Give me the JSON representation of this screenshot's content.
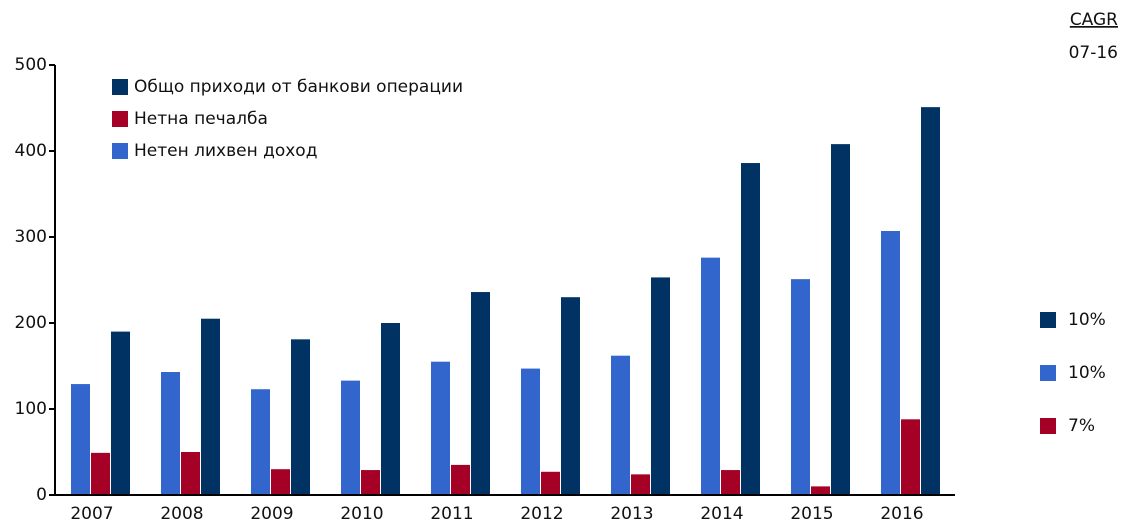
{
  "chart_data": {
    "type": "bar",
    "categories": [
      "2007",
      "2008",
      "2009",
      "2010",
      "2011",
      "2012",
      "2013",
      "2014",
      "2015",
      "2016"
    ],
    "series": [
      {
        "name": "Нетен лихвен доход",
        "color": "#3366cc",
        "values": [
          129,
          143,
          123,
          133,
          155,
          147,
          162,
          276,
          251,
          307
        ]
      },
      {
        "name": "Нетна печалба",
        "color": "#a50026",
        "values": [
          49,
          50,
          30,
          29,
          35,
          27,
          24,
          29,
          10,
          88
        ]
      },
      {
        "name": "Общо приходи от банкови операции",
        "color": "#003264",
        "values": [
          190,
          205,
          181,
          200,
          236,
          230,
          253,
          386,
          408,
          451
        ]
      }
    ],
    "legend_order": [
      2,
      1,
      0
    ],
    "ylim": [
      0,
      500
    ],
    "yticks": [
      0,
      100,
      200,
      300,
      400,
      500
    ],
    "cagr": {
      "title": "CAGR",
      "period": "07-16",
      "entries": [
        {
          "label": "10%",
          "color": "#003264"
        },
        {
          "label": "10%",
          "color": "#3366cc"
        },
        {
          "label": "7%",
          "color": "#a50026"
        }
      ]
    }
  }
}
